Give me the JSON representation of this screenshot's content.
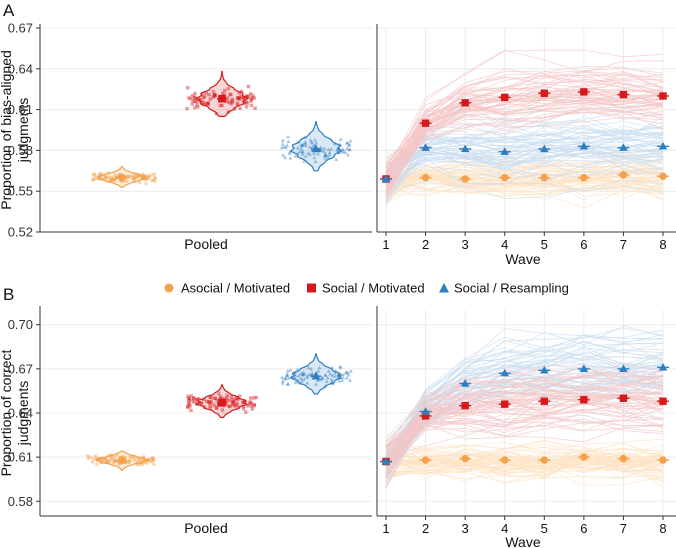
{
  "figure": {
    "legend": [
      {
        "name": "Asocial / Motivated",
        "color": "#F5A04A",
        "marker": "circle"
      },
      {
        "name": "Social / Motivated",
        "color": "#D7191C",
        "marker": "square"
      },
      {
        "name": "Social / Resampling",
        "color": "#2E7EC2",
        "marker": "triangle"
      }
    ]
  },
  "chart_data": [
    {
      "panel": "A",
      "type": "violin",
      "ylabel": "Proportion of bias-aligned judgments",
      "ylabel_lines": [
        "Proportion of bias-aligned",
        "judgments"
      ],
      "xlabel": "Pooled",
      "ylim": [
        0.52,
        0.67
      ],
      "yticks": [
        0.52,
        0.55,
        0.58,
        0.61,
        0.64,
        0.67
      ],
      "ytick_labels": [
        "0.52",
        "0.55",
        "0.58",
        "0.61",
        "0.64",
        "0.67"
      ],
      "series": [
        {
          "name": "Asocial / Motivated",
          "mean": 0.56,
          "range": [
            0.553,
            0.568
          ]
        },
        {
          "name": "Social / Motivated",
          "mean": 0.618,
          "range": [
            0.605,
            0.638
          ]
        },
        {
          "name": "Social / Resampling",
          "mean": 0.581,
          "range": [
            0.565,
            0.601
          ]
        }
      ]
    },
    {
      "panel": "A",
      "type": "line",
      "xlabel": "Wave",
      "x": [
        1,
        2,
        3,
        4,
        5,
        6,
        7,
        8
      ],
      "ylim": [
        0.52,
        0.67
      ],
      "series": [
        {
          "name": "Asocial / Motivated",
          "values": [
            0.559,
            0.56,
            0.559,
            0.56,
            0.56,
            0.56,
            0.562,
            0.561
          ]
        },
        {
          "name": "Social / Motivated",
          "values": [
            0.559,
            0.6,
            0.615,
            0.619,
            0.622,
            0.623,
            0.621,
            0.62
          ]
        },
        {
          "name": "Social / Resampling",
          "values": [
            0.559,
            0.582,
            0.581,
            0.579,
            0.581,
            0.583,
            0.582,
            0.583
          ]
        }
      ]
    },
    {
      "panel": "B",
      "type": "violin",
      "ylabel": "Proportion of correct judgments",
      "ylabel_lines": [
        "Proportion of correct",
        "judgments"
      ],
      "xlabel": "Pooled",
      "ylim": [
        0.57,
        0.71
      ],
      "yticks": [
        0.58,
        0.61,
        0.64,
        0.67,
        0.7
      ],
      "ytick_labels": [
        "0.58",
        "0.61",
        "0.64",
        "0.67",
        "0.70"
      ],
      "series": [
        {
          "name": "Asocial / Motivated",
          "mean": 0.608,
          "range": [
            0.601,
            0.614
          ]
        },
        {
          "name": "Social / Motivated",
          "mean": 0.647,
          "range": [
            0.637,
            0.659
          ]
        },
        {
          "name": "Social / Resampling",
          "mean": 0.665,
          "range": [
            0.653,
            0.68
          ]
        }
      ]
    },
    {
      "panel": "B",
      "type": "line",
      "xlabel": "Wave",
      "x": [
        1,
        2,
        3,
        4,
        5,
        6,
        7,
        8
      ],
      "ylim": [
        0.57,
        0.71
      ],
      "series": [
        {
          "name": "Asocial / Motivated",
          "values": [
            0.607,
            0.608,
            0.609,
            0.608,
            0.608,
            0.61,
            0.609,
            0.608
          ]
        },
        {
          "name": "Social / Motivated",
          "values": [
            0.607,
            0.638,
            0.645,
            0.646,
            0.648,
            0.649,
            0.65,
            0.648
          ]
        },
        {
          "name": "Social / Resampling",
          "values": [
            0.607,
            0.641,
            0.66,
            0.667,
            0.669,
            0.67,
            0.67,
            0.671
          ]
        }
      ]
    }
  ]
}
